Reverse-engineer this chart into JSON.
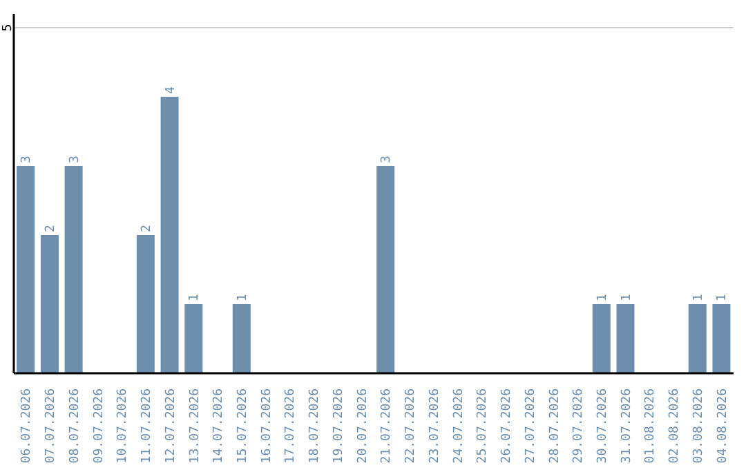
{
  "chart_data": {
    "type": "bar",
    "categories": [
      "06.07.2026",
      "07.07.2026",
      "08.07.2026",
      "09.07.2026",
      "10.07.2026",
      "11.07.2026",
      "12.07.2026",
      "13.07.2026",
      "14.07.2026",
      "15.07.2026",
      "16.07.2026",
      "17.07.2026",
      "18.07.2026",
      "19.07.2026",
      "20.07.2026",
      "21.07.2026",
      "22.07.2026",
      "23.07.2026",
      "24.07.2026",
      "25.07.2026",
      "26.07.2026",
      "27.07.2026",
      "28.07.2026",
      "29.07.2026",
      "30.07.2026",
      "31.07.2026",
      "01.08.2026",
      "02.08.2026",
      "03.08.2026",
      "04.08.2026"
    ],
    "values": [
      3,
      2,
      3,
      null,
      null,
      2,
      4,
      1,
      null,
      1,
      null,
      null,
      null,
      null,
      null,
      3,
      null,
      null,
      null,
      null,
      null,
      null,
      null,
      null,
      1,
      1,
      null,
      null,
      1,
      1
    ],
    "color": "#6d8eac",
    "ylim": [
      0,
      5.2
    ],
    "yticks": [
      5
    ],
    "grid": "y",
    "data_labels": true
  }
}
